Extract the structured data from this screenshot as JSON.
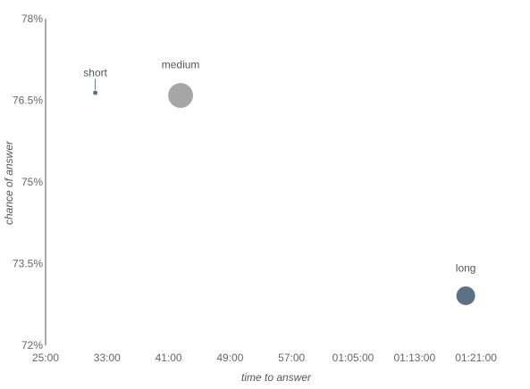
{
  "chart_data": {
    "type": "scatter",
    "title": "",
    "xlabel": "time to answer",
    "ylabel": "chance of answer",
    "xlim_seconds": [
      1500,
      5100
    ],
    "ylim": [
      0.72,
      0.78
    ],
    "x_ticks": [
      "25:00",
      "33:00",
      "41:00",
      "49:00",
      "57:00",
      "01:05:00",
      "01:13:00",
      "01:21:00"
    ],
    "y_ticks": [
      "72%",
      "73.5%",
      "75%",
      "76.5%",
      "78%"
    ],
    "grid": false,
    "colors": {
      "short": "#5b7285",
      "medium": "#a6a6a6",
      "long": "#5b7285"
    },
    "points": [
      {
        "label": "short",
        "x_seconds": 1888,
        "y": 0.7664,
        "size": 1
      },
      {
        "label": "medium",
        "x_seconds": 2554,
        "y": 0.7659,
        "size": 8
      },
      {
        "label": "long",
        "x_seconds": 4780,
        "y": 0.7291,
        "size": 6
      }
    ]
  }
}
